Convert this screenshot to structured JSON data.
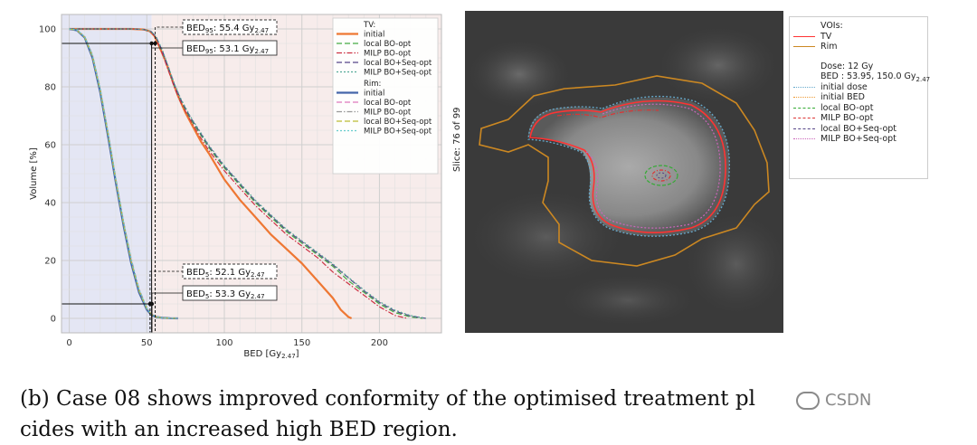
{
  "chart_data": [
    {
      "type": "line",
      "title": "",
      "xlabel": "BED [Gy",
      "xlabel_sub": "2.47",
      "xlabel_end": "]",
      "ylabel": "Volume [%]",
      "xlim": [
        -5,
        240
      ],
      "ylim": [
        -5,
        105
      ],
      "xticks": [
        0,
        50,
        100,
        150,
        200
      ],
      "yticks": [
        0,
        20,
        40,
        60,
        80,
        100
      ],
      "grid": true,
      "legend_position": "top-right",
      "legend_groups": [
        {
          "title": "TV:",
          "entries": [
            "initial",
            "local BO-opt",
            "MILP BO-opt",
            "local BO+Seq-opt",
            "MILP BO+Seq-opt"
          ]
        },
        {
          "title": "Rim:",
          "entries": [
            "initial",
            "local BO-opt",
            "MILP BO-opt",
            "local BO+Seq-opt",
            "MILP BO+Seq-opt"
          ]
        }
      ],
      "series": [
        {
          "group": "TV",
          "name": "initial",
          "color": "#ee7733",
          "style": "solid",
          "x": [
            0,
            40,
            48,
            52,
            55,
            58,
            62,
            66,
            70,
            75,
            80,
            85,
            90,
            100,
            110,
            120,
            130,
            140,
            150,
            160,
            170,
            175,
            180,
            182
          ],
          "y": [
            100,
            100,
            99.8,
            99.2,
            97.5,
            94,
            89,
            83,
            77,
            71,
            66,
            61,
            57,
            48,
            41,
            35,
            29,
            24,
            19,
            13,
            7,
            3,
            0.5,
            0
          ]
        },
        {
          "group": "TV",
          "name": "local BO-opt",
          "color": "#44aa44",
          "style": "dashed",
          "x": [
            0,
            40,
            48,
            53,
            56,
            60,
            64,
            68,
            72,
            78,
            84,
            90,
            100,
            110,
            120,
            130,
            140,
            150,
            160,
            170,
            180,
            190,
            200,
            210,
            220,
            228
          ],
          "y": [
            100,
            100,
            99.8,
            99,
            97,
            92,
            86,
            80,
            75,
            69,
            64,
            59,
            52,
            46,
            40,
            35,
            30,
            26,
            22,
            18,
            13,
            9,
            5,
            2,
            0.5,
            0
          ]
        },
        {
          "group": "TV",
          "name": "MILP BO-opt",
          "color": "#cc3344",
          "style": "dashdot",
          "x": [
            0,
            40,
            48,
            53,
            56,
            60,
            64,
            68,
            72,
            78,
            84,
            90,
            100,
            110,
            120,
            130,
            140,
            150,
            160,
            170,
            180,
            190,
            200,
            210,
            218
          ],
          "y": [
            100,
            100,
            99.8,
            99,
            96.8,
            91.5,
            85.5,
            79.5,
            74.5,
            68.5,
            63,
            58,
            51,
            45,
            39,
            34,
            29,
            25,
            21,
            16,
            12,
            8,
            4,
            1,
            0
          ]
        },
        {
          "group": "TV",
          "name": "local BO+Seq-opt",
          "color": "#554488",
          "style": "dashed",
          "x": [
            0,
            40,
            48,
            53,
            56,
            60,
            64,
            68,
            72,
            78,
            84,
            90,
            100,
            110,
            120,
            130,
            140,
            150,
            160,
            170,
            180,
            190,
            200,
            210,
            220,
            230
          ],
          "y": [
            100,
            100,
            99.8,
            99,
            97.2,
            92.5,
            86.5,
            80.5,
            75.5,
            69.5,
            64.5,
            59.5,
            52.5,
            46.5,
            40.5,
            35.5,
            30.5,
            26.5,
            22.5,
            18.5,
            14,
            9.5,
            5.5,
            2.5,
            0.8,
            0
          ]
        },
        {
          "group": "TV",
          "name": "MILP BO+Seq-opt",
          "color": "#55aa99",
          "style": "dotted",
          "x": [
            0,
            40,
            48,
            53,
            56,
            60,
            64,
            68,
            72,
            78,
            84,
            90,
            100,
            110,
            120,
            130,
            140,
            150,
            160,
            170,
            180,
            190,
            200,
            210,
            220,
            230
          ],
          "y": [
            100,
            100,
            99.8,
            99.1,
            97.3,
            92.8,
            86.8,
            80.8,
            75.8,
            69.8,
            64.8,
            59.8,
            52.8,
            46.8,
            40.8,
            35.8,
            30.8,
            26.8,
            22.8,
            18.8,
            14.2,
            9.8,
            5.8,
            2.8,
            1,
            0
          ]
        },
        {
          "group": "Rim",
          "name": "initial",
          "color": "#4466aa",
          "style": "solid",
          "x": [
            0,
            5,
            10,
            15,
            20,
            25,
            30,
            35,
            40,
            45,
            50,
            53,
            56,
            60,
            65,
            70
          ],
          "y": [
            100,
            99.5,
            97,
            90,
            78,
            63,
            47,
            32,
            19,
            9,
            3,
            1.2,
            0.5,
            0.2,
            0.05,
            0
          ]
        },
        {
          "group": "Rim",
          "name": "local BO-opt",
          "color": "#dd77bb",
          "style": "dashed",
          "x": [
            0,
            5,
            10,
            15,
            20,
            25,
            30,
            35,
            40,
            45,
            50,
            53,
            56,
            60,
            65,
            70
          ],
          "y": [
            100,
            99.5,
            97.2,
            90.5,
            78.8,
            64,
            48,
            33,
            20,
            9.8,
            3.4,
            1.4,
            0.6,
            0.2,
            0.05,
            0
          ]
        },
        {
          "group": "Rim",
          "name": "MILP BO-opt",
          "color": "#999999",
          "style": "dashdot",
          "x": [
            0,
            5,
            10,
            15,
            20,
            25,
            30,
            35,
            40,
            45,
            50,
            53,
            56,
            60,
            65,
            70
          ],
          "y": [
            100,
            99.6,
            97.4,
            91,
            79.3,
            64.5,
            48.5,
            33.5,
            20.5,
            10.2,
            3.6,
            1.5,
            0.6,
            0.2,
            0.05,
            0
          ]
        },
        {
          "group": "Rim",
          "name": "local BO+Seq-opt",
          "color": "#bbbb33",
          "style": "dashed",
          "x": [
            0,
            5,
            10,
            15,
            20,
            25,
            30,
            35,
            40,
            45,
            50,
            53,
            56,
            60,
            65,
            70
          ],
          "y": [
            100,
            99.5,
            97.1,
            90.3,
            78.5,
            63.6,
            47.6,
            32.6,
            19.6,
            9.5,
            3.3,
            1.3,
            0.5,
            0.2,
            0.05,
            0
          ]
        },
        {
          "group": "Rim",
          "name": "MILP BO+Seq-opt",
          "color": "#66cccc",
          "style": "dotted",
          "x": [
            0,
            5,
            10,
            15,
            20,
            25,
            30,
            35,
            40,
            45,
            50,
            53,
            56,
            60,
            65,
            70
          ],
          "y": [
            100,
            99.6,
            97.3,
            90.8,
            79,
            64.2,
            48.2,
            33.2,
            20.2,
            10,
            3.5,
            1.4,
            0.6,
            0.2,
            0.05,
            0
          ]
        }
      ],
      "annotations": [
        {
          "name": "bed95-dashed",
          "label": "BED",
          "sub_top": "95",
          "text": ":  55.4 Gy",
          "sub": "2.47",
          "x": 55.4,
          "y": 95,
          "style": "dashed"
        },
        {
          "name": "bed95-solid",
          "label": "BED",
          "sub_top": "95",
          "text": ":  53.1 Gy",
          "sub": "2.47",
          "x": 53.1,
          "y": 95,
          "style": "solid"
        },
        {
          "name": "bed5-dashed",
          "label": "BED",
          "sub_top": "5",
          "text": ":  52.1 Gy",
          "sub": "2.47",
          "x": 52.1,
          "y": 5,
          "style": "dashed"
        },
        {
          "name": "bed5-solid",
          "label": "BED",
          "sub_top": "5",
          "text": ":  53.3 Gy",
          "sub": "2.47",
          "x": 53.3,
          "y": 5,
          "style": "solid"
        }
      ],
      "shaded_regions": [
        {
          "name": "rim-region",
          "x": [
            -5,
            53.1
          ],
          "color": "#e4e6f4"
        },
        {
          "name": "tv-region",
          "x": [
            53.1,
            240
          ],
          "color": "#f7eceb"
        }
      ]
    }
  ],
  "slice_view": {
    "ylabel": "Slice: 76 of 99",
    "legend": {
      "vois_title": "VOIs:",
      "vois": [
        {
          "name": "TV",
          "color": "#ff3333",
          "style": "solid"
        },
        {
          "name": "Rim",
          "color": "#cc8822",
          "style": "solid"
        }
      ],
      "dose_title": "Dose: 12 Gy",
      "bed_text": "BED : 53.95, 150.0 Gy",
      "bed_sub": "2.47",
      "entries": [
        {
          "name": "initial dose",
          "color": "#66aacc",
          "style": "dotted"
        },
        {
          "name": "initial BED",
          "color": "#ee9933",
          "style": "dotted"
        },
        {
          "name": "local BO-opt",
          "color": "#33aa33",
          "style": "dashed"
        },
        {
          "name": "MILP BO-opt",
          "color": "#dd3333",
          "style": "dashdot"
        },
        {
          "name": "local BO+Seq-opt",
          "color": "#554488",
          "style": "dashed"
        },
        {
          "name": "MILP BO+Seq-opt",
          "color": "#cc66bb",
          "style": "dotted"
        }
      ]
    }
  },
  "caption": {
    "text_line1": "(b) Case 08 shows improved conformity of the optimised treatment pl",
    "text_line2": "cides with an increased high BED region."
  },
  "watermark": {
    "text": "CSDN"
  }
}
